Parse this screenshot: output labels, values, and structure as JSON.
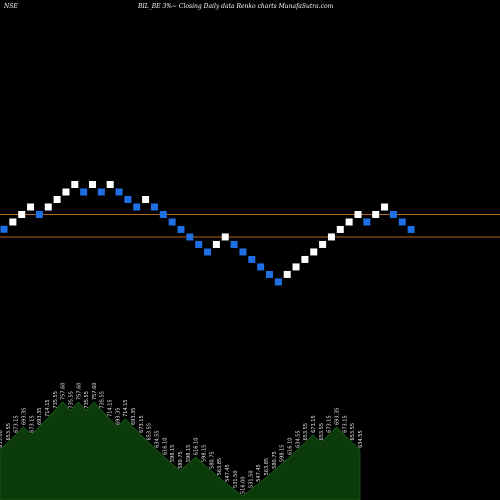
{
  "header": {
    "exchange": "NSE",
    "title": "BIL_BE 3%~ Closing Daily data Renko charts MunafaSutra.com"
  },
  "colors": {
    "background": "#000000",
    "up_brick": "#ffffff",
    "down_brick": "#1f6fe5",
    "level_line": "#b5651d",
    "area_fill": "#0b3a0b",
    "area_stroke": "#1c5a1c",
    "label": "#e8e8e8"
  },
  "chart_data": {
    "type": "renko",
    "bricks": [
      {
        "dir": "down",
        "label": "635.00"
      },
      {
        "dir": "up",
        "label": "653.55"
      },
      {
        "dir": "up",
        "label": "673.15"
      },
      {
        "dir": "up",
        "label": "693.35"
      },
      {
        "dir": "down",
        "label": "673.15"
      },
      {
        "dir": "up",
        "label": "693.35"
      },
      {
        "dir": "up",
        "label": "714.15"
      },
      {
        "dir": "up",
        "label": "735.55"
      },
      {
        "dir": "up",
        "label": "757.60"
      },
      {
        "dir": "down",
        "label": "735.55"
      },
      {
        "dir": "up",
        "label": "757.60"
      },
      {
        "dir": "down",
        "label": "735.55"
      },
      {
        "dir": "up",
        "label": "757.60"
      },
      {
        "dir": "down",
        "label": "735.55"
      },
      {
        "dir": "down",
        "label": "714.15"
      },
      {
        "dir": "down",
        "label": "693.35"
      },
      {
        "dir": "up",
        "label": "714.15"
      },
      {
        "dir": "down",
        "label": "693.35"
      },
      {
        "dir": "down",
        "label": "673.15"
      },
      {
        "dir": "down",
        "label": "653.55"
      },
      {
        "dir": "down",
        "label": "634.55"
      },
      {
        "dir": "down",
        "label": "616.10"
      },
      {
        "dir": "down",
        "label": "598.15"
      },
      {
        "dir": "down",
        "label": "580.75"
      },
      {
        "dir": "up",
        "label": "598.15"
      },
      {
        "dir": "up",
        "label": "616.10"
      },
      {
        "dir": "down",
        "label": "598.15"
      },
      {
        "dir": "down",
        "label": "580.75"
      },
      {
        "dir": "down",
        "label": "563.85"
      },
      {
        "dir": "down",
        "label": "547.45"
      },
      {
        "dir": "down",
        "label": "531.50"
      },
      {
        "dir": "down",
        "label": "516.00"
      },
      {
        "dir": "up",
        "label": "531.50"
      },
      {
        "dir": "up",
        "label": "547.45"
      },
      {
        "dir": "up",
        "label": "563.85"
      },
      {
        "dir": "up",
        "label": "580.75"
      },
      {
        "dir": "up",
        "label": "598.15"
      },
      {
        "dir": "up",
        "label": "616.10"
      },
      {
        "dir": "up",
        "label": "634.55"
      },
      {
        "dir": "up",
        "label": "653.55"
      },
      {
        "dir": "up",
        "label": "673.15"
      },
      {
        "dir": "down",
        "label": "653.55"
      },
      {
        "dir": "up",
        "label": "673.15"
      },
      {
        "dir": "up",
        "label": "693.35"
      },
      {
        "dir": "down",
        "label": "673.15"
      },
      {
        "dir": "down",
        "label": "653.55"
      },
      {
        "dir": "down",
        "label": "634.55"
      }
    ],
    "levels": [
      673.15,
      616.1
    ],
    "area_series": [
      635.0,
      653.55,
      673.15,
      693.35,
      673.15,
      693.35,
      714.15,
      735.55,
      757.6,
      735.55,
      757.6,
      735.55,
      757.6,
      735.55,
      714.15,
      693.35,
      714.15,
      693.35,
      673.15,
      653.55,
      634.55,
      616.1,
      598.15,
      580.75,
      598.15,
      616.1,
      598.15,
      580.75,
      563.85,
      547.45,
      531.5,
      516.0,
      531.5,
      547.45,
      563.85,
      580.75,
      598.15,
      616.1,
      634.55,
      653.55,
      673.15,
      653.55,
      673.15,
      693.35,
      673.15,
      653.55,
      634.55
    ]
  }
}
